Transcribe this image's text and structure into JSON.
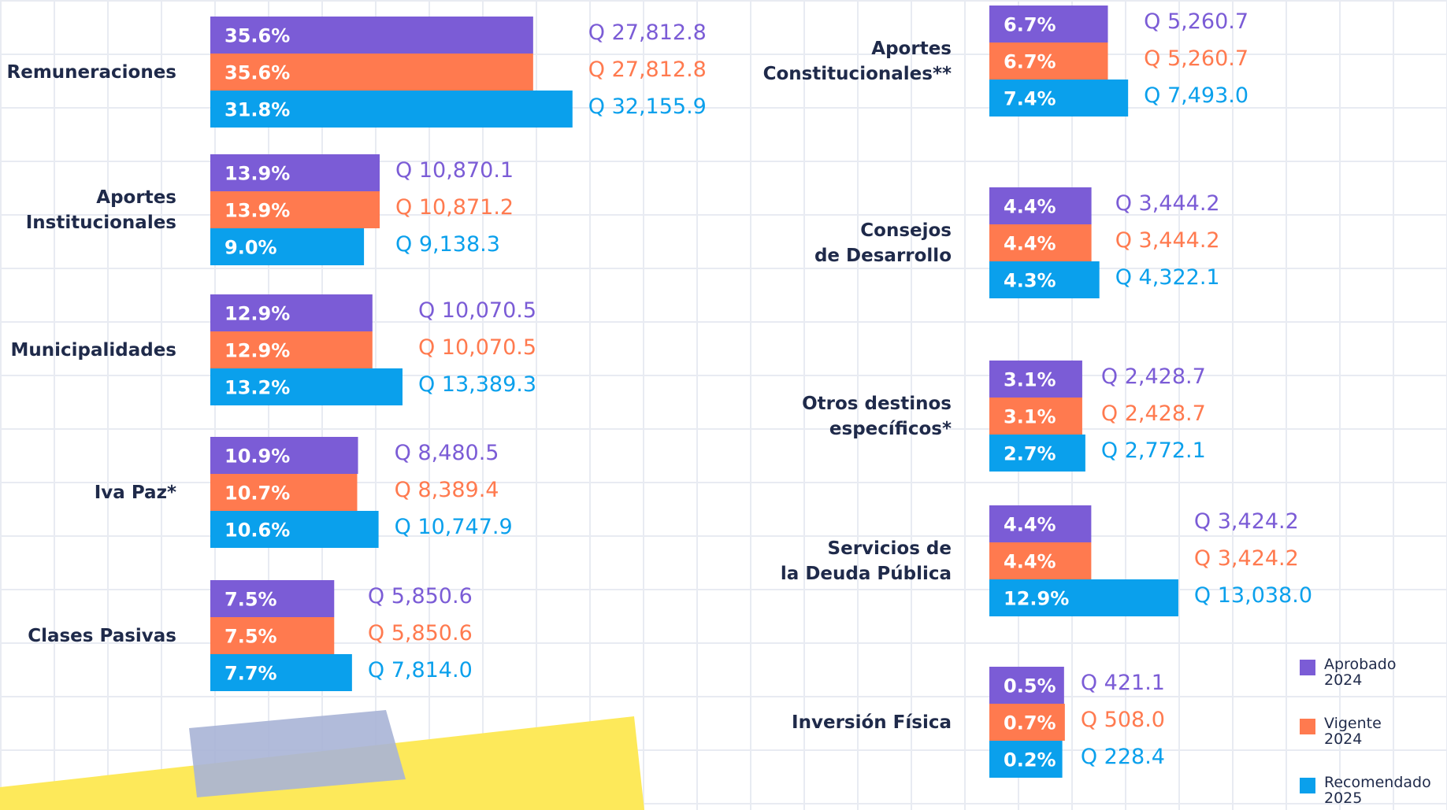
{
  "chart_data": {
    "type": "bar",
    "orientation": "horizontal",
    "legend": "bottom-right",
    "categories": [
      "Remuneraciones",
      "Aportes\nInstitucionales",
      "Municipalidades",
      "Iva Paz*",
      "Clases Pasivas",
      "Aportes\nConstitucionales**",
      "Consejos\nde Desarrollo",
      "Otros destinos\nespecíficos*",
      "Servicios de\nla Deuda Pública",
      "Inversión Física"
    ],
    "series": [
      {
        "name": "Aprobado\n2024",
        "color": "#7b5cd6",
        "values": [
          27812.8,
          10870.1,
          10070.5,
          8480.5,
          5850.6,
          5260.7,
          3444.2,
          2428.7,
          3424.2,
          421.1
        ],
        "value_labels": [
          "Q 27,812.8",
          "Q 10,870.1",
          "Q 10,070.5",
          "Q 8,480.5",
          "Q 5,850.6",
          "Q 5,260.7",
          "Q 3,444.2",
          "Q 2,428.7",
          "Q 3,424.2",
          "Q 421.1"
        ],
        "percent": [
          35.6,
          13.9,
          12.9,
          10.9,
          7.5,
          6.7,
          4.4,
          3.1,
          4.4,
          0.5
        ],
        "percent_labels": [
          "35.6%",
          "13.9%",
          "12.9%",
          "10.9%",
          "7.5%",
          "6.7%",
          "4.4%",
          "3.1%",
          "4.4%",
          "0.5%"
        ]
      },
      {
        "name": "Vigente\n2024",
        "color": "#ff7a4f",
        "values": [
          27812.8,
          10871.2,
          10070.5,
          8389.4,
          5850.6,
          5260.7,
          3444.2,
          2428.7,
          3424.2,
          508.0
        ],
        "value_labels": [
          "Q 27,812.8",
          "Q 10,871.2",
          "Q 10,070.5",
          "Q 8,389.4",
          "Q 5,850.6",
          "Q 5,260.7",
          "Q 3,444.2",
          "Q 2,428.7",
          "Q 3,424.2",
          "Q 508.0"
        ],
        "percent": [
          35.6,
          13.9,
          12.9,
          10.7,
          7.5,
          6.7,
          4.4,
          3.1,
          4.4,
          0.7
        ],
        "percent_labels": [
          "35.6%",
          "13.9%",
          "12.9%",
          "10.7%",
          "7.5%",
          "6.7%",
          "4.4%",
          "3.1%",
          "4.4%",
          "0.7%"
        ]
      },
      {
        "name": "Recomendado\n2025",
        "color": "#0aa0ec",
        "values": [
          32155.9,
          9138.3,
          13389.3,
          10747.9,
          7814.0,
          7493.0,
          4322.1,
          2772.1,
          13038.0,
          228.4
        ],
        "value_labels": [
          "Q 32,155.9",
          "Q 9,138.3",
          "Q 13,389.3",
          "Q 10,747.9",
          "Q 7,814.0",
          "Q 7,493.0",
          "Q 4,322.1",
          "Q 2,772.1",
          "Q 13,038.0",
          "Q 228.4"
        ],
        "percent": [
          31.8,
          9.0,
          13.2,
          10.6,
          7.7,
          7.4,
          4.3,
          2.7,
          12.9,
          0.2
        ],
        "percent_labels": [
          "31.8%",
          "9.0%",
          "13.2%",
          "10.6%",
          "7.7%",
          "7.4%",
          "4.3%",
          "2.7%",
          "12.9%",
          "0.2%"
        ]
      }
    ]
  }
}
